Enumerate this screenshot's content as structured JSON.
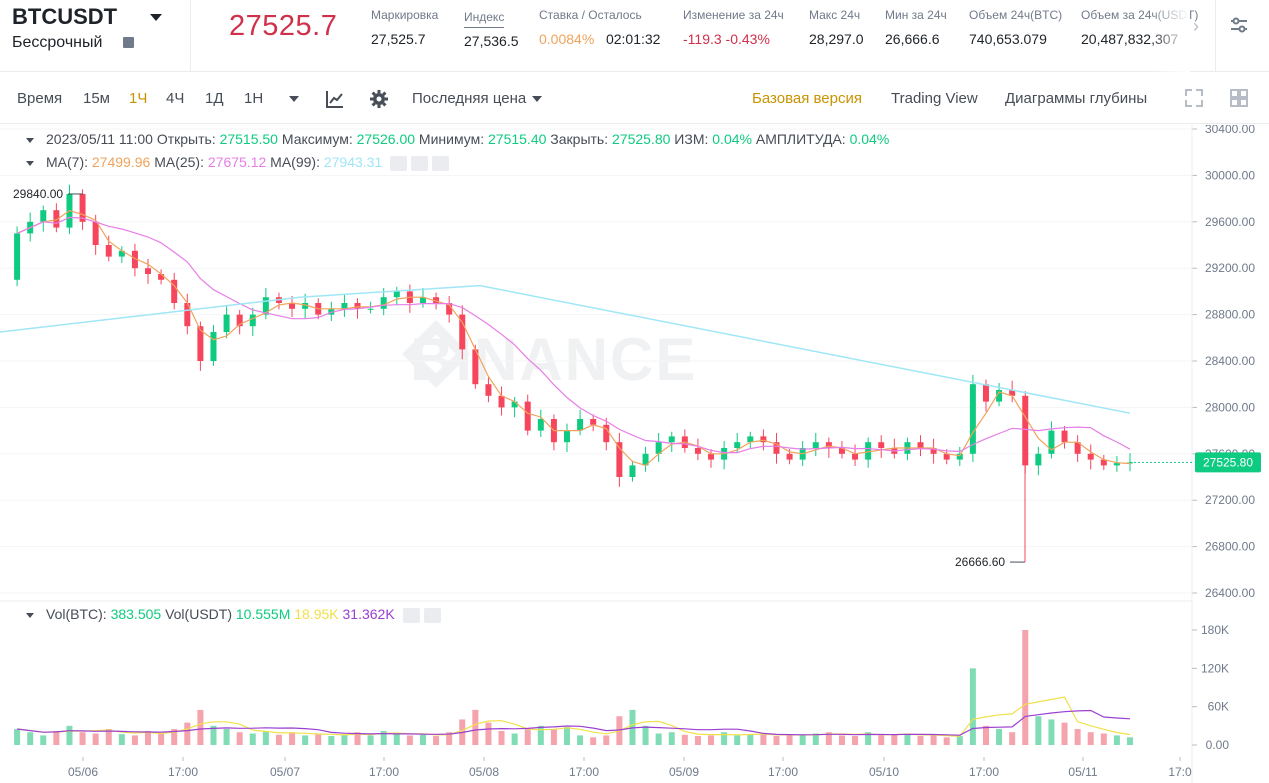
{
  "header": {
    "symbol": "BTCUSDT",
    "contract_type": "Бессрочный",
    "last_price": "27525.7",
    "stats": [
      {
        "label": "Маркировка",
        "value": "27,525.7"
      },
      {
        "label": "Индекс",
        "value": "27,536.5"
      },
      {
        "label": "Ставка / Осталось",
        "value_a": "0.0084%",
        "value_b": "02:01:32"
      },
      {
        "label": "Изменение за 24ч",
        "value": "-119.3 -0.43%"
      },
      {
        "label": "Макс 24ч",
        "value": "28,297.0"
      },
      {
        "label": "Мин за 24ч",
        "value": "26,666.6"
      },
      {
        "label": "Объем 24ч(BTC)",
        "value": "740,653.079"
      },
      {
        "label": "Объем за 24ч(USDT)",
        "value": "20,487,832,307"
      }
    ],
    "colors": {
      "price_down": "#cf304a",
      "funding": "#f0b90b",
      "accent": "#c99400",
      "up": "#0ecb81"
    }
  },
  "toolbar": {
    "time_label": "Время",
    "intervals": [
      "15м",
      "1Ч",
      "4Ч",
      "1Д",
      "1Н"
    ],
    "active_interval": "1Ч",
    "price_type": "Последняя цена",
    "view_basic": "Базовая версия",
    "view_tradingview": "Trading View",
    "view_depth": "Диаграммы глубины",
    "icons": [
      "indicator-icon",
      "gear-icon",
      "fullscreen-icon",
      "layout-grid-icon"
    ]
  },
  "ohlc": {
    "date": "2023/05/11 11:00",
    "open_label": "Открыть:",
    "open": "27515.50",
    "high_label": "Максимум:",
    "high": "27526.00",
    "low_label": "Минимум:",
    "low": "27515.40",
    "close_label": "Закрыть:",
    "close": "27525.80",
    "change_label": "ИЗМ:",
    "change": "0.04%",
    "amplitude_label": "АМПЛИТУДА:",
    "amplitude": "0.04%"
  },
  "ma": {
    "ma7_label": "MA(7):",
    "ma7": "27499.96",
    "ma7_color": "#f0a35c",
    "ma25_label": "MA(25):",
    "ma25": "27675.12",
    "ma25_color": "#e77ee7",
    "ma99_label": "MA(99):",
    "ma99": "27943.31",
    "ma99_color": "#9fe6f7"
  },
  "volume": {
    "vol_btc_label": "Vol(BTC):",
    "vol_btc": "383.505",
    "vol_usdt_label": "Vol(USDT)",
    "vol_usdt": "10.555M",
    "ma_yellow": "18.95K",
    "ma_purple": "31.362K"
  },
  "watermark": "BINANCE",
  "chart_data": {
    "type": "candlestick",
    "y_ticks": [
      "30400.00",
      "30000.00",
      "29600.00",
      "29200.00",
      "28800.00",
      "28400.00",
      "28000.00",
      "27600.00",
      "27200.00",
      "26800.00",
      "26400.00"
    ],
    "ylim": [
      26400,
      30400
    ],
    "current_price_label": "27525.80",
    "high_marker": "29840.00",
    "low_marker": "26666.60",
    "x_ticks": [
      "05/06",
      "17:00",
      "05/07",
      "17:00",
      "05/08",
      "17:00",
      "05/09",
      "17:00",
      "05/10",
      "17:00",
      "05/11",
      "17:0"
    ],
    "vol_ticks": [
      "180K",
      "120K",
      "60K",
      "0.00"
    ],
    "vol_max": 180000,
    "price_path": [
      29100,
      29500,
      29600,
      29700,
      29550,
      29840,
      29600,
      29400,
      29300,
      29350,
      29200,
      29150,
      29100,
      28900,
      28700,
      28400,
      28650,
      28800,
      28700,
      28800,
      28950,
      28900,
      28850,
      28900,
      28800,
      28850,
      28900,
      28850,
      28850,
      28950,
      29000,
      28900,
      28950,
      28900,
      28800,
      28500,
      28200,
      28100,
      28000,
      28050,
      27800,
      27900,
      27700,
      27800,
      27900,
      27850,
      27700,
      27400,
      27500,
      27600,
      27700,
      27750,
      27650,
      27600,
      27550,
      27650,
      27700,
      27750,
      27700,
      27600,
      27550,
      27650,
      27700,
      27650,
      27600,
      27550,
      27700,
      27650,
      27600,
      27700,
      27650,
      27600,
      27550,
      27600,
      28200,
      28050,
      28150,
      28100,
      27500,
      27600,
      27800,
      27700,
      27600,
      27550,
      27500,
      27520,
      27525.8
    ],
    "volumes": [
      30,
      25,
      20,
      15,
      22,
      30,
      20,
      18,
      25,
      17,
      15,
      22,
      18,
      25,
      35,
      55,
      30,
      25,
      20,
      18,
      22,
      16,
      20,
      15,
      18,
      14,
      16,
      20,
      15,
      22,
      18,
      15,
      16,
      14,
      20,
      40,
      55,
      35,
      22,
      18,
      25,
      30,
      25,
      28,
      15,
      12,
      15,
      45,
      55,
      30,
      18,
      20,
      16,
      14,
      15,
      20,
      15,
      16,
      18,
      14,
      15,
      16,
      18,
      20,
      15,
      14,
      20,
      15,
      16,
      18,
      14,
      15,
      12,
      14,
      120,
      30,
      25,
      20,
      180,
      45,
      40,
      35,
      25,
      20,
      18,
      15,
      12
    ]
  }
}
